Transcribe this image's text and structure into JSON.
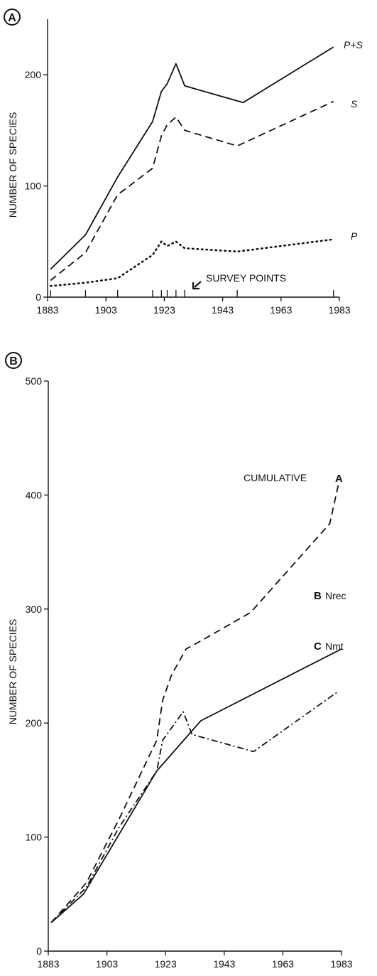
{
  "chart_data": [
    {
      "panel_label": "A",
      "type": "line",
      "title": "",
      "xlabel": "",
      "ylabel": "NUMBER OF SPECIES",
      "xlim": [
        1883,
        1983
      ],
      "ylim": [
        0,
        250
      ],
      "x_ticks": [
        1883,
        1903,
        1923,
        1943,
        1963,
        1983
      ],
      "y_ticks": [
        0,
        100,
        200
      ],
      "x_tick_labels": [
        "1883",
        "1903",
        "1923",
        "1943",
        "1963",
        "1983"
      ],
      "y_tick_labels": [
        "0",
        "100",
        "200"
      ],
      "series": [
        {
          "name": "P+S",
          "style": "solid",
          "x": [
            1884,
            1896,
            1907,
            1919,
            1922,
            1924,
            1927,
            1930,
            1950,
            1981
          ],
          "y": [
            25,
            56,
            108,
            158,
            185,
            192,
            210,
            190,
            175,
            225
          ]
        },
        {
          "name": "S",
          "style": "dashed",
          "x": [
            1884,
            1896,
            1907,
            1919,
            1922,
            1924,
            1927,
            1930,
            1948,
            1981
          ],
          "y": [
            15,
            40,
            92,
            116,
            145,
            155,
            162,
            150,
            136,
            176
          ]
        },
        {
          "name": "P",
          "style": "dotted",
          "x": [
            1884,
            1896,
            1907,
            1919,
            1922,
            1924,
            1927,
            1930,
            1948,
            1981
          ],
          "y": [
            10,
            13,
            17,
            38,
            50,
            46,
            50,
            44,
            41,
            52
          ]
        }
      ],
      "survey_points": [
        1884,
        1896,
        1907,
        1919,
        1922,
        1924,
        1927,
        1930,
        1948,
        1981
      ],
      "annotation": "SURVEY POINTS"
    },
    {
      "panel_label": "B",
      "type": "line",
      "title": "",
      "xlabel": "",
      "ylabel": "NUMBER OF SPECIES",
      "xlim": [
        1883,
        1983
      ],
      "ylim": [
        0,
        500
      ],
      "x_ticks": [
        1883,
        1903,
        1923,
        1943,
        1963,
        1983
      ],
      "y_ticks": [
        0,
        100,
        200,
        300,
        400,
        500
      ],
      "x_tick_labels": [
        "1883",
        "1903",
        "1923",
        "1943",
        "1963",
        "1983"
      ],
      "y_tick_labels": [
        "0",
        "100",
        "200",
        "300",
        "400",
        "500"
      ],
      "series": [
        {
          "name": "CUMULATIVE",
          "letter": "A",
          "style": "dashed",
          "x": [
            1884,
            1896,
            1907,
            1920,
            1922,
            1925,
            1930,
            1935,
            1952,
            1979,
            1982
          ],
          "y": [
            25,
            60,
            115,
            185,
            220,
            242,
            265,
            272,
            297,
            375,
            410
          ]
        },
        {
          "name": "Nrec",
          "letter": "B",
          "style": "solid",
          "x": [
            1884,
            1895,
            1920,
            1935,
            1983
          ],
          "y": [
            25,
            50,
            158,
            202,
            265
          ]
        },
        {
          "name": "Nmt",
          "letter": "C",
          "style": "dashdot",
          "x": [
            1884,
            1896,
            1907,
            1920,
            1922,
            1924,
            1929,
            1932,
            1953,
            1982
          ],
          "y": [
            25,
            56,
            108,
            158,
            185,
            192,
            210,
            190,
            175,
            228
          ]
        }
      ]
    }
  ]
}
